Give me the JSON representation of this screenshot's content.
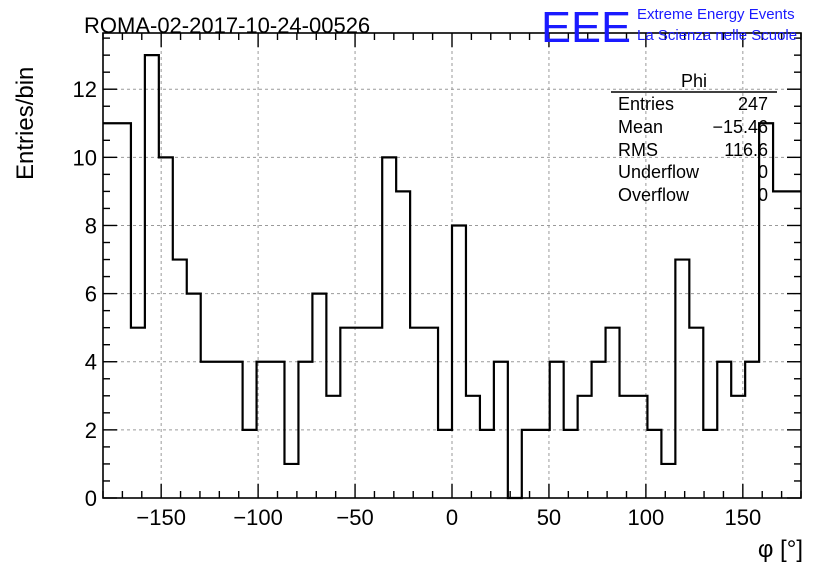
{
  "header": {
    "run_title": "ROMA-02-2017-10-24-00526",
    "logo_text": "EEE",
    "org_line1": "Extreme Energy Events",
    "org_line2": "La Scienza nelle Scuole"
  },
  "stats_box": {
    "title": "Phi",
    "rows": [
      {
        "label": "Entries",
        "value": "247"
      },
      {
        "label": "Mean",
        "value": "−15.46"
      },
      {
        "label": "RMS",
        "value": "116.6"
      },
      {
        "label": "Underflow",
        "value": "0"
      },
      {
        "label": "Overflow",
        "value": "0"
      }
    ]
  },
  "chart_data": {
    "type": "histogram",
    "title": "ROMA-02-2017-10-24-00526",
    "xlabel": "φ [°]",
    "ylabel": "Entries/bin",
    "xlim": [
      -180,
      180
    ],
    "ylim": [
      0,
      13.65
    ],
    "grid": true,
    "bin_width": 7.2,
    "x_ticks": [
      -150,
      -100,
      -50,
      0,
      50,
      100,
      150
    ],
    "x_tick_labels": [
      "−150",
      "−100",
      "−50",
      "0",
      "50",
      "100",
      "150"
    ],
    "y_ticks": [
      0,
      2,
      4,
      6,
      8,
      10,
      12
    ],
    "y_tick_labels": [
      "0",
      "2",
      "4",
      "6",
      "8",
      "10",
      "12"
    ],
    "values": [
      11,
      11,
      5,
      13,
      10,
      7,
      6,
      4,
      4,
      4,
      2,
      4,
      4,
      1,
      4,
      6,
      3,
      5,
      5,
      5,
      10,
      9,
      5,
      5,
      2,
      8,
      3,
      2,
      4,
      0,
      2,
      2,
      4,
      2,
      3,
      4,
      5,
      3,
      3,
      2,
      1,
      7,
      5,
      2,
      4,
      3,
      4,
      11,
      9,
      9
    ]
  }
}
